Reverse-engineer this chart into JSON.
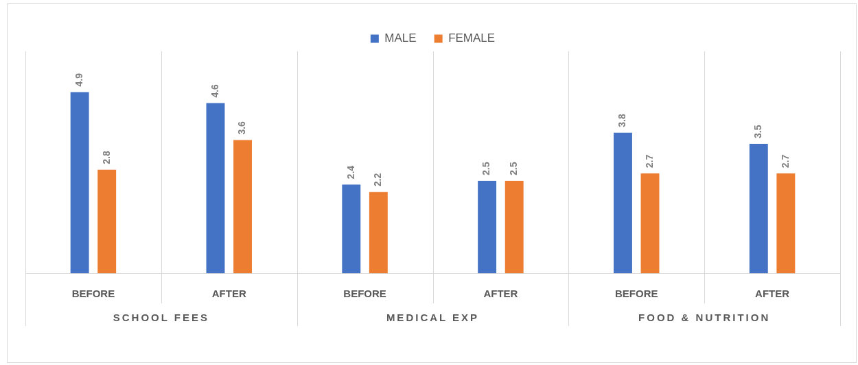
{
  "chart_data": {
    "type": "bar",
    "categories": [
      "BEFORE",
      "AFTER",
      "BEFORE",
      "AFTER",
      "BEFORE",
      "AFTER"
    ],
    "series": [
      {
        "name": "MALE",
        "color": "#4472c4",
        "values": [
          4.9,
          4.6,
          2.4,
          2.5,
          3.8,
          3.5
        ]
      },
      {
        "name": "FEMALE",
        "color": "#ed7d31",
        "values": [
          2.8,
          3.6,
          2.2,
          2.5,
          2.7,
          2.7
        ]
      }
    ],
    "annotations": [
      "SCHOOL FEES",
      "MEDICAL EXP",
      "FOOD & NUTRITION"
    ],
    "ylim": [
      0,
      6
    ],
    "data_labels": true,
    "legend": "top",
    "grid": "x"
  }
}
